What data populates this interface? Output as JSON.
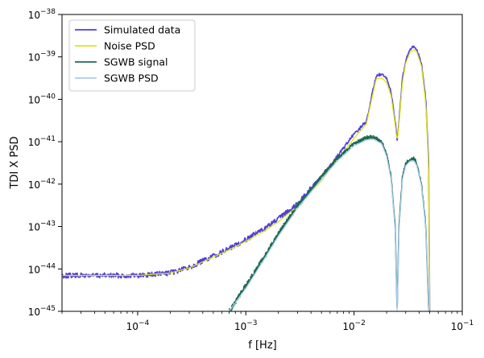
{
  "chart_data": {
    "type": "line",
    "title": "",
    "xlabel": "f [Hz]",
    "ylabel": "TDI X PSD",
    "xscale": "log",
    "yscale": "log",
    "xlim": [
      2e-05,
      0.1
    ],
    "ylim": [
      1e-45,
      1e-38
    ],
    "grid": false,
    "legend_position": "top-left",
    "x_ticks": [
      {
        "value": 0.0001,
        "base": "10",
        "exp": "−4"
      },
      {
        "value": 0.001,
        "base": "10",
        "exp": "−3"
      },
      {
        "value": 0.01,
        "base": "10",
        "exp": "−2"
      },
      {
        "value": 0.1,
        "base": "10",
        "exp": "−1"
      }
    ],
    "y_ticks": [
      {
        "value": 1e-45,
        "base": "10",
        "exp": "−45"
      },
      {
        "value": 1e-44,
        "base": "10",
        "exp": "−44"
      },
      {
        "value": 1e-43,
        "base": "10",
        "exp": "−43"
      },
      {
        "value": 1e-42,
        "base": "10",
        "exp": "−42"
      },
      {
        "value": 1e-41,
        "base": "10",
        "exp": "−41"
      },
      {
        "value": 1e-40,
        "base": "10",
        "exp": "−40"
      },
      {
        "value": 1e-39,
        "base": "10",
        "exp": "−39"
      },
      {
        "value": 1e-38,
        "base": "10",
        "exp": "−38"
      }
    ],
    "series": [
      {
        "name": "Simulated data",
        "color": "#4f3fd8",
        "style": "noisy",
        "x": [
          2e-05,
          5e-05,
          0.0001,
          0.0002,
          0.0003,
          0.0005,
          0.0007,
          0.001,
          0.0015,
          0.002,
          0.003,
          0.005,
          0.007,
          0.01,
          0.013,
          0.016,
          0.018,
          0.02,
          0.022,
          0.024,
          0.025,
          0.026,
          0.028,
          0.03,
          0.033,
          0.036,
          0.038,
          0.042,
          0.046,
          0.049,
          0.05
        ],
        "y": [
          7e-45,
          7e-45,
          7e-45,
          8e-45,
          1.1e-44,
          2e-44,
          3e-44,
          5e-44,
          9e-44,
          1.5e-43,
          3.5e-43,
          1.5e-42,
          4.5e-42,
          1.5e-41,
          3e-41,
          3.6e-40,
          3.8e-40,
          3e-40,
          1.5e-40,
          3e-41,
          1e-41,
          3e-41,
          3e-40,
          8e-40,
          1.5e-39,
          1.7e-39,
          1.5e-39,
          7e-40,
          1e-40,
          3e-42,
          1e-45
        ]
      },
      {
        "name": "Noise PSD",
        "color": "#dfe51a",
        "style": "smooth",
        "x": [
          2e-05,
          5e-05,
          0.0001,
          0.0002,
          0.0003,
          0.0005,
          0.0007,
          0.001,
          0.0015,
          0.002,
          0.003,
          0.005,
          0.007,
          0.01,
          0.013,
          0.016,
          0.018,
          0.02,
          0.022,
          0.024,
          0.025,
          0.026,
          0.028,
          0.03,
          0.033,
          0.036,
          0.038,
          0.042,
          0.046,
          0.049,
          0.05
        ],
        "y": [
          7e-45,
          7e-45,
          7e-45,
          8e-45,
          1.05e-44,
          1.9e-44,
          2.8e-44,
          4.5e-44,
          8e-44,
          1.3e-43,
          3e-43,
          1.2e-42,
          3.8e-42,
          1.2e-41,
          2.6e-41,
          3e-40,
          3.2e-40,
          2.5e-40,
          1.2e-40,
          2.5e-41,
          1e-41,
          2.5e-41,
          2.5e-40,
          7e-40,
          1.3e-39,
          1.5e-39,
          1.3e-39,
          6e-40,
          8e-41,
          2e-42,
          1e-45
        ]
      },
      {
        "name": "SGWB signal",
        "color": "#1f6b4f",
        "style": "noisy",
        "x": [
          0.0007,
          0.001,
          0.0015,
          0.002,
          0.003,
          0.005,
          0.007,
          0.01,
          0.013,
          0.015,
          0.018,
          0.02,
          0.022,
          0.024,
          0.025,
          0.026,
          0.028,
          0.03,
          0.033,
          0.036,
          0.038,
          0.042,
          0.046,
          0.049,
          0.05
        ],
        "y": [
          1e-45,
          4e-45,
          2e-44,
          7e-44,
          3e-43,
          1.5e-42,
          4e-42,
          9e-42,
          1.25e-41,
          1.3e-41,
          1e-41,
          5e-42,
          1.5e-42,
          1e-43,
          1e-45,
          1e-43,
          1.5e-42,
          3e-42,
          4e-42,
          4e-42,
          3e-42,
          1e-42,
          1e-43,
          1e-45,
          1e-45
        ]
      },
      {
        "name": "SGWB PSD",
        "color": "#aacdf2",
        "style": "smooth",
        "x": [
          0.0007,
          0.001,
          0.0015,
          0.002,
          0.003,
          0.005,
          0.007,
          0.01,
          0.013,
          0.015,
          0.018,
          0.02,
          0.022,
          0.024,
          0.025,
          0.026,
          0.028,
          0.03,
          0.033,
          0.036,
          0.038,
          0.042,
          0.046,
          0.049,
          0.05
        ],
        "y": [
          1e-45,
          3.5e-45,
          1.8e-44,
          6e-44,
          2.7e-43,
          1.3e-42,
          3.5e-42,
          8e-42,
          1.1e-41,
          1.15e-41,
          9e-42,
          4.5e-42,
          1.3e-42,
          8e-44,
          1e-45,
          8e-44,
          1.3e-42,
          2.7e-42,
          3.5e-42,
          3.5e-42,
          2.7e-42,
          9e-43,
          9e-44,
          1e-45,
          1e-45
        ]
      }
    ]
  }
}
